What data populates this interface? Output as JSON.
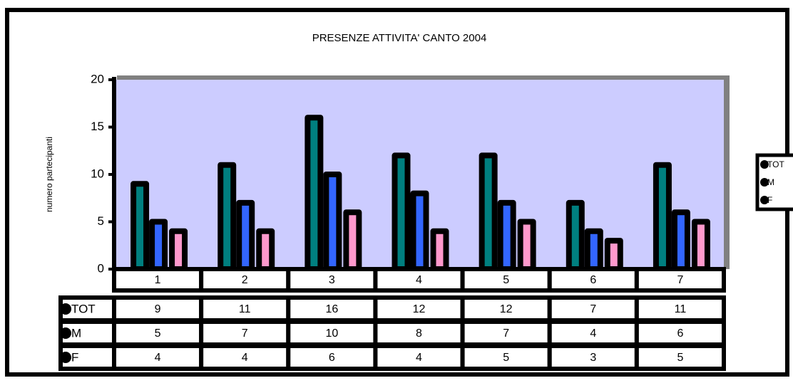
{
  "chart_data": {
    "type": "bar",
    "title": "PRESENZE ATTIVITA' CANTO 2004",
    "y_label": "numero partecipanti",
    "categories": [
      "1",
      "2",
      "3",
      "4",
      "5",
      "6",
      "7"
    ],
    "series": [
      {
        "name": "TOT",
        "color": "#007f7f",
        "values": [
          9,
          11,
          16,
          12,
          12,
          7,
          11
        ]
      },
      {
        "name": "M",
        "color": "#3366ff",
        "values": [
          5,
          7,
          10,
          8,
          7,
          4,
          6
        ]
      },
      {
        "name": "F",
        "color": "#ff99cc",
        "values": [
          4,
          4,
          6,
          4,
          5,
          3,
          5
        ]
      }
    ],
    "ylim": [
      0,
      20
    ],
    "yticks": [
      0,
      5,
      10,
      15,
      20
    ],
    "plot_background": "#ccccff",
    "legend": "right",
    "data_table": true
  }
}
